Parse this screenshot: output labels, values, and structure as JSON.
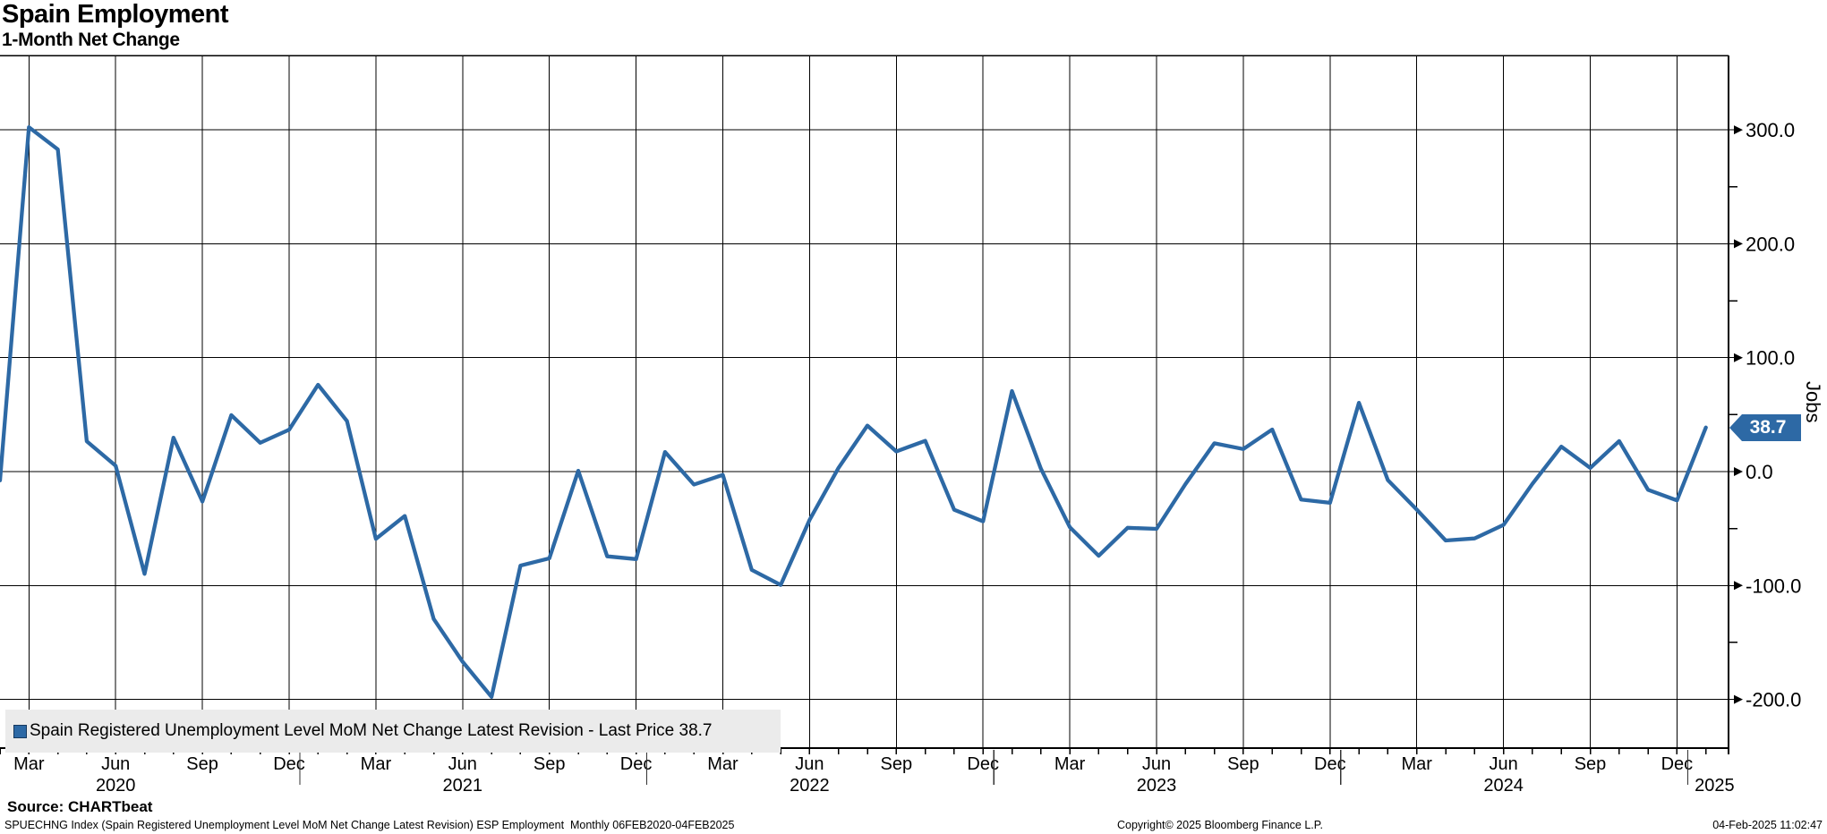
{
  "chart_data": {
    "type": "line",
    "title": "Spain Employment",
    "subtitle": "1-Month Net Change",
    "ylabel": "Jobs",
    "line_color": "#2d69a5",
    "grid": true,
    "legend_position": "bottom-left",
    "ylim": [
      -240,
      365
    ],
    "y_ticks": [
      300,
      200,
      100,
      0,
      -100,
      -200
    ],
    "y_tick_labels": [
      "300.0",
      "200.0",
      "100.0",
      "0.0",
      "-100.0",
      "-200.0"
    ],
    "y_minor_ticks": [
      250,
      150,
      50,
      -50,
      -150
    ],
    "x": [
      "Feb 2020",
      "Mar 2020",
      "Apr 2020",
      "May 2020",
      "Jun 2020",
      "Jul 2020",
      "Aug 2020",
      "Sep 2020",
      "Oct 2020",
      "Nov 2020",
      "Dec 2020",
      "Jan 2021",
      "Feb 2021",
      "Mar 2021",
      "Apr 2021",
      "May 2021",
      "Jun 2021",
      "Jul 2021",
      "Aug 2021",
      "Sep 2021",
      "Oct 2021",
      "Nov 2021",
      "Dec 2021",
      "Jan 2022",
      "Feb 2022",
      "Mar 2022",
      "Apr 2022",
      "May 2022",
      "Jun 2022",
      "Jul 2022",
      "Aug 2022",
      "Sep 2022",
      "Oct 2022",
      "Nov 2022",
      "Dec 2022",
      "Jan 2023",
      "Feb 2023",
      "Mar 2023",
      "Apr 2023",
      "May 2023",
      "Jun 2023",
      "Jul 2023",
      "Aug 2023",
      "Sep 2023",
      "Oct 2023",
      "Nov 2023",
      "Dec 2023",
      "Jan 2024",
      "Feb 2024",
      "Mar 2024",
      "Apr 2024",
      "May 2024",
      "Jun 2024",
      "Jul 2024",
      "Aug 2024",
      "Sep 2024",
      "Oct 2024",
      "Nov 2024",
      "Dec 2024",
      "Jan 2025"
    ],
    "values": [
      -7.8,
      302.3,
      282.9,
      26.6,
      5.1,
      -89.8,
      29.8,
      -26.3,
      49.6,
      25.3,
      36.8,
      76.2,
      44.4,
      -59.1,
      -39.0,
      -129.4,
      -166.9,
      -197.8,
      -82.6,
      -76.1,
      0.7,
      -74.4,
      -76.8,
      17.2,
      -11.4,
      -2.9,
      -86.3,
      -99.5,
      -42.4,
      3.2,
      40.4,
      17.7,
      27.0,
      -33.5,
      -43.7,
      70.7,
      2.6,
      -48.8,
      -73.9,
      -49.3,
      -50.3,
      -11.0,
      24.8,
      19.8,
      36.9,
      -24.6,
      -27.4,
      60.4,
      -7.5,
      -33.4,
      -60.5,
      -58.7,
      -46.8,
      -10.8,
      21.9,
      3.2,
      26.8,
      -16.0,
      -25.3,
      38.7
    ],
    "quarter_label_months": [
      "Mar",
      "Jun",
      "Sep",
      "Dec"
    ],
    "year_labels": [
      "2020",
      "2021",
      "2022",
      "2023",
      "2024",
      "2025"
    ],
    "last_price": 38.7,
    "last_price_label": "38.7"
  },
  "legend": {
    "marker": "square-icon",
    "text": "Spain Registered Unemployment Level MoM Net Change Latest Revision - Last Price 38.7"
  },
  "footer": {
    "source": "Source: CHARTbeat",
    "description": "SPUECHNG Index (Spain Registered Unemployment Level MoM Net Change Latest Revision) ESP Employment  Monthly 06FEB2020-04FEB2025",
    "copyright": "Copyright© 2025 Bloomberg Finance L.P.",
    "timestamp": "04-Feb-2025 11:02:47"
  }
}
